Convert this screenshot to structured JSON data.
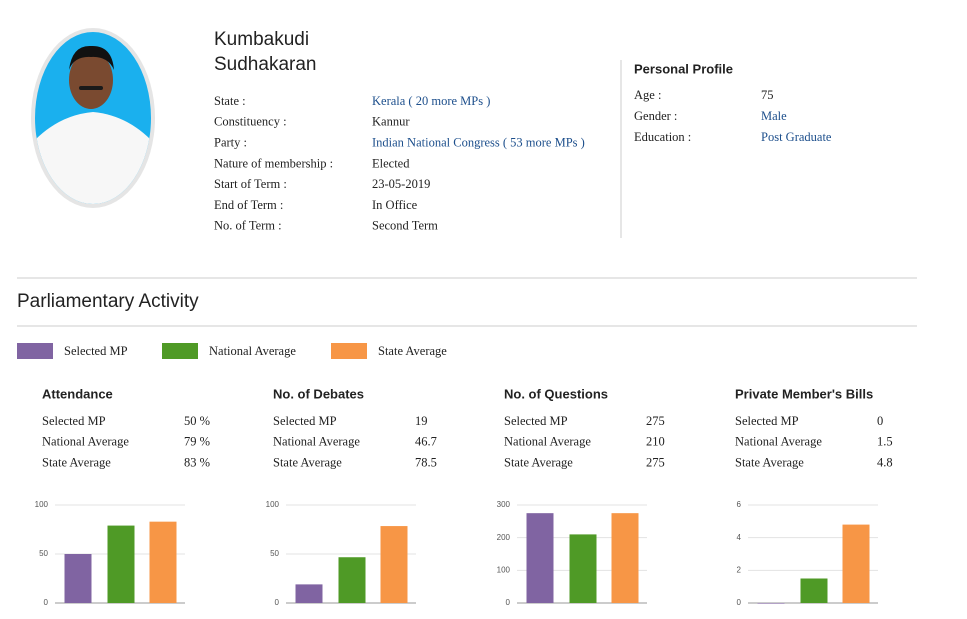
{
  "profile": {
    "name": [
      "Kumbakudi",
      "Sudhakaran"
    ],
    "details": [
      {
        "label": "State :",
        "value": "Kerala ( 20 more MPs )",
        "link": true
      },
      {
        "label": "Constituency :",
        "value": "Kannur",
        "link": false
      },
      {
        "label": "Party :",
        "value": "Indian National Congress ( 53 more MPs )",
        "link": true
      },
      {
        "label": "Nature of membership :",
        "value": "Elected",
        "link": false
      },
      {
        "label": "Start of Term :",
        "value": "23-05-2019",
        "link": false
      },
      {
        "label": "End of Term :",
        "value": "In Office",
        "link": false
      },
      {
        "label": "No. of Term :",
        "value": "Second Term",
        "link": false
      }
    ],
    "personal_title": "Personal Profile",
    "personal": [
      {
        "label": "Age :",
        "value": "75",
        "link": false
      },
      {
        "label": "Gender :",
        "value": "Male",
        "link": true
      },
      {
        "label": "Education :",
        "value": "Post Graduate",
        "link": true
      }
    ]
  },
  "section_title": "Parliamentary Activity",
  "legend": [
    {
      "name": "Selected MP",
      "color": "#8064a2"
    },
    {
      "name": "National Average",
      "color": "#4f9a26"
    },
    {
      "name": "State Average",
      "color": "#f79646"
    }
  ],
  "chart_data": [
    {
      "type": "bar",
      "title": "Attendance",
      "categories": [
        "Selected MP",
        "National Average",
        "State Average"
      ],
      "values": [
        50,
        79,
        83
      ],
      "value_labels": [
        "50 %",
        "79 %",
        "83 %"
      ],
      "ylim": [
        0,
        100
      ],
      "yticks": [
        0,
        50,
        100
      ],
      "grid": true
    },
    {
      "type": "bar",
      "title": "No. of Debates",
      "categories": [
        "Selected MP",
        "National Average",
        "State Average"
      ],
      "values": [
        19,
        46.7,
        78.5
      ],
      "ylim": [
        0,
        100
      ],
      "yticks": [
        0,
        50,
        100
      ],
      "grid": true
    },
    {
      "type": "bar",
      "title": "No. of Questions",
      "categories": [
        "Selected MP",
        "National Average",
        "State Average"
      ],
      "values": [
        275,
        210,
        275
      ],
      "ylim": [
        0,
        300
      ],
      "yticks": [
        0,
        100,
        200,
        300
      ],
      "grid": true
    },
    {
      "type": "bar",
      "title": "Private Member's Bills",
      "categories": [
        "Selected MP",
        "National Average",
        "State Average"
      ],
      "values": [
        0,
        1.5,
        4.8
      ],
      "ylim": [
        0,
        6
      ],
      "yticks": [
        0,
        2,
        4,
        6
      ],
      "grid": true
    }
  ]
}
